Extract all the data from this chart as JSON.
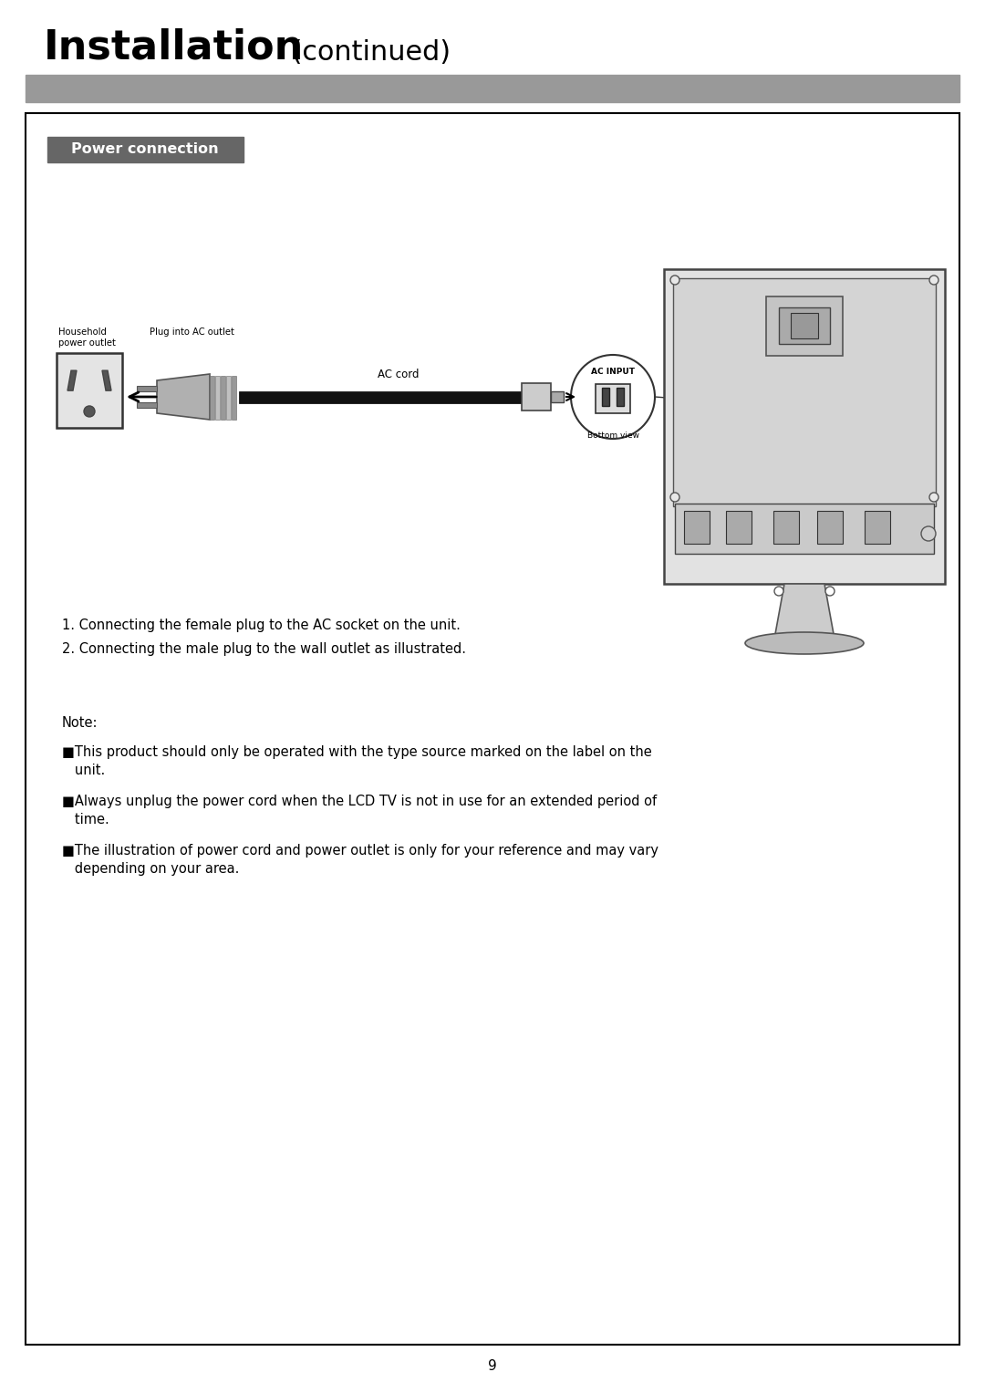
{
  "title_bold": "Installation",
  "title_normal": " (continued)",
  "title_fontsize": 32,
  "gray_bar_color": "#999999",
  "page_bg": "#ffffff",
  "border_color": "#000000",
  "section_title": "Power connection",
  "section_title_bg": "#666666",
  "section_title_color": "#ffffff",
  "label_household": "Household\npower outlet",
  "label_plug": "Plug into AC outlet",
  "label_ac_cord": "AC cord",
  "label_ac_input": "AC INPUT",
  "label_bottom_view": "Bottom view",
  "step1": "1. Connecting the female plug to the AC socket on the unit.",
  "step2": "2. Connecting the male plug to the wall outlet as illustrated.",
  "note_title": "Note:",
  "note1_bullet": "■This product should only be operated with the type source marked on the label on the",
  "note1_cont": "   unit.",
  "note2_bullet": "■Always unplug the power cord when the LCD TV is not in use for an extended period of",
  "note2_cont": "   time.",
  "note3_bullet": "■The illustration of power cord and power outlet is only for your reference and may vary",
  "note3_cont": "   depending on your area.",
  "page_number": "9",
  "text_color": "#000000",
  "body_fontsize": 10.5,
  "note_fontsize": 10.5
}
